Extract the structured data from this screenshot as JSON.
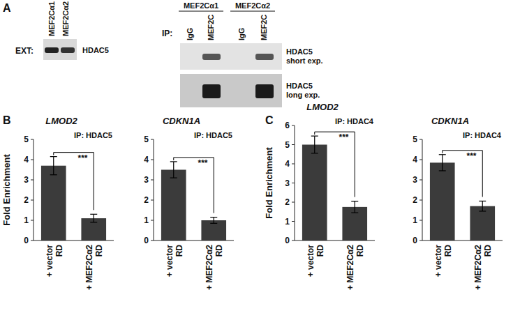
{
  "blot": {
    "panel_label": "A",
    "ext_label": "EXT:",
    "ext_lanes": [
      "MEF2Cα1",
      "MEF2Cα2"
    ],
    "ext_protein": "HDAC5",
    "ip_label": "IP:",
    "ip_groups": [
      "MEF2Cα1",
      "MEF2Cα2"
    ],
    "ip_lanes": [
      "IgG",
      "MEF2C",
      "IgG",
      "MEF2C"
    ],
    "exposures": [
      {
        "protein": "HDAC5",
        "exposure": "short exp."
      },
      {
        "protein": "HDAC5",
        "exposure": "long exp."
      }
    ]
  },
  "chart_data": [
    {
      "type": "bar",
      "panel_label": "B",
      "title": "LMOD2",
      "annotation": "IP: HDAC5",
      "y_label": "Fold Enrichment",
      "categories": [
        "+ vector RD",
        "+ MEF2Cα2 RD"
      ],
      "values": [
        3.7,
        1.1
      ],
      "errors": [
        0.45,
        0.2
      ],
      "significance": "***",
      "color": "#3b3b3b",
      "ylim": [
        0,
        5
      ],
      "yticks": [
        0,
        1,
        2,
        3,
        4,
        5
      ],
      "grid": false
    },
    {
      "type": "bar",
      "title": "CDKN1A",
      "annotation": "IP: HDAC5",
      "categories": [
        "+ vector RD",
        "+ MEF2Cα2 RD"
      ],
      "values": [
        3.5,
        1.0
      ],
      "errors": [
        0.4,
        0.15
      ],
      "significance": "***",
      "color": "#3b3b3b",
      "ylim": [
        0,
        5
      ],
      "yticks": [
        0,
        1,
        2,
        3,
        4,
        5
      ],
      "grid": false
    },
    {
      "type": "bar",
      "panel_label": "C",
      "title": "LMOD2",
      "annotation": "IP: HDAC4",
      "y_label": "Fold Enrichment",
      "categories": [
        "+ vector RD",
        "+ MEF2Cα2 RD"
      ],
      "values": [
        5.0,
        1.75
      ],
      "errors": [
        0.45,
        0.3
      ],
      "significance": "***",
      "color": "#3b3b3b",
      "ylim": [
        0,
        6
      ],
      "yticks": [
        0,
        1,
        2,
        3,
        4,
        5,
        6
      ],
      "grid": false
    },
    {
      "type": "bar",
      "title": "CDKN1A",
      "annotation": "IP: HDAC4",
      "categories": [
        "+ vector RD",
        "+ MEF2Cα2 RD"
      ],
      "values": [
        3.85,
        1.7
      ],
      "errors": [
        0.4,
        0.25
      ],
      "significance": "***",
      "color": "#3b3b3b",
      "ylim": [
        0,
        5
      ],
      "yticks": [
        0,
        1,
        2,
        3,
        4,
        5
      ],
      "grid": false
    }
  ]
}
